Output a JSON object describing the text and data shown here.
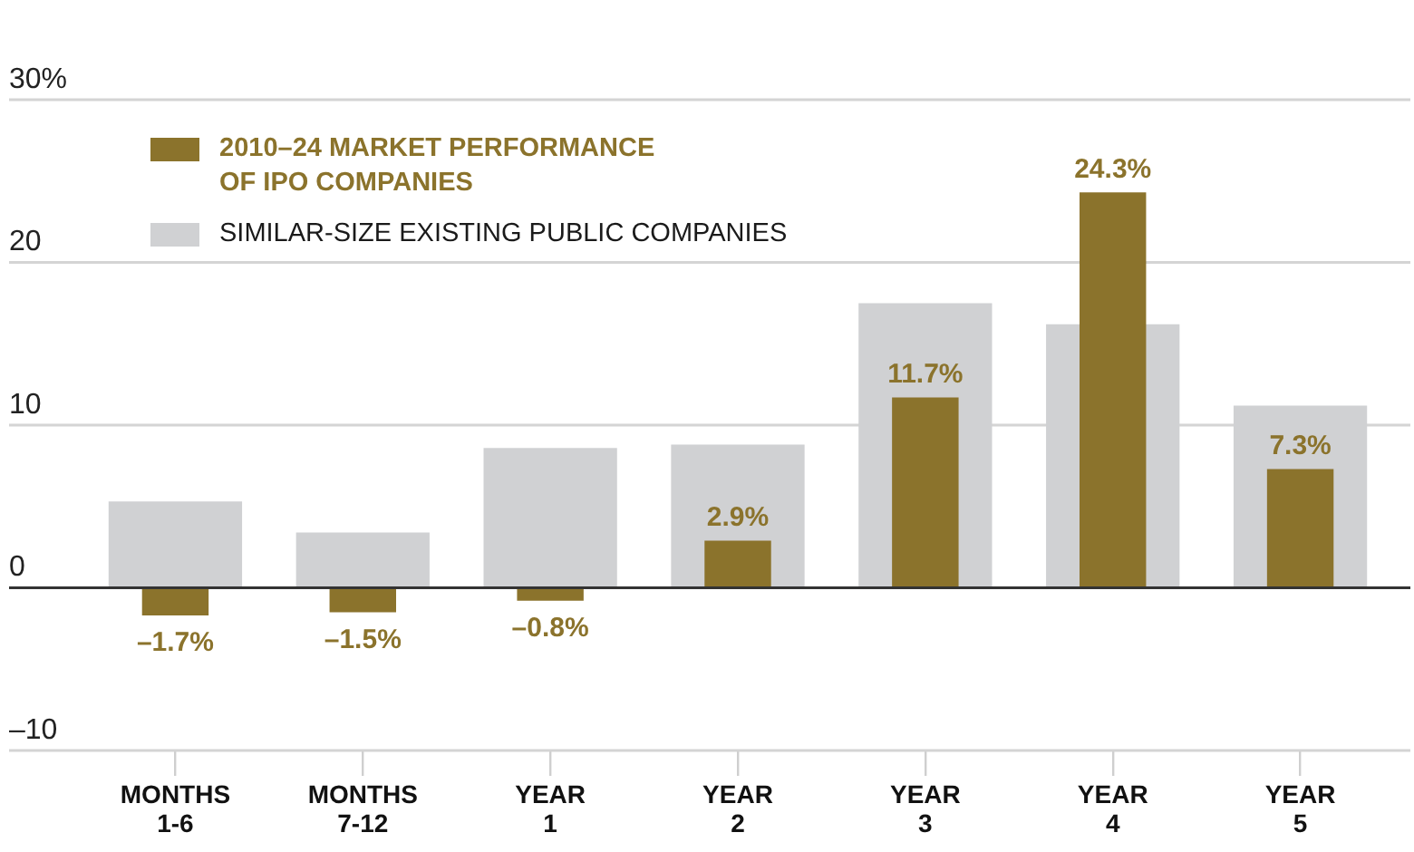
{
  "chart_data": {
    "type": "bar",
    "categories": [
      "MONTHS 1-6",
      "MONTHS 7-12",
      "YEAR 1",
      "YEAR 2",
      "YEAR 3",
      "YEAR 4",
      "YEAR 5"
    ],
    "series": [
      {
        "name": "2010–24 MARKET PERFORMANCE OF IPO COMPANIES",
        "color": "#8b732c",
        "values": [
          -1.7,
          -1.5,
          -0.8,
          2.9,
          11.7,
          24.3,
          7.3
        ],
        "value_labels": [
          "–1.7%",
          "–1.5%",
          "–0.8%",
          "2.9%",
          "11.7%",
          "24.3%",
          "7.3%"
        ]
      },
      {
        "name": "SIMILAR-SIZE EXISTING PUBLIC COMPANIES",
        "color": "#d0d1d3",
        "values": [
          5.3,
          3.4,
          8.6,
          8.8,
          17.5,
          16.2,
          11.2
        ]
      }
    ],
    "ylim": [
      -10,
      30
    ],
    "yticks": [
      {
        "value": -10,
        "label": "–10"
      },
      0,
      10,
      20,
      {
        "value": 30,
        "label": "30%"
      }
    ],
    "grid": "y",
    "legend": "top left"
  }
}
